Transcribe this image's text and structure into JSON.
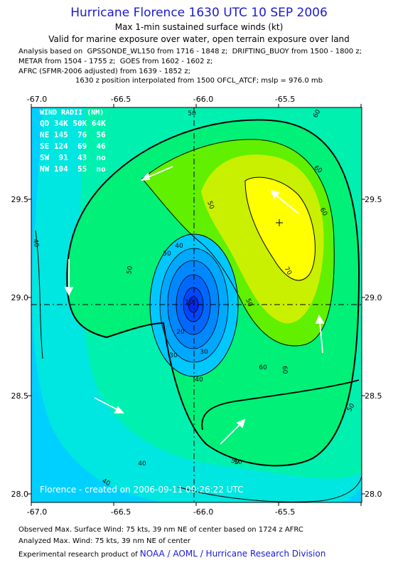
{
  "header": {
    "title": "Hurricane Florence 1630 UTC 10 SEP 2006",
    "subtitle": "Max 1-min sustained surface winds (kt)",
    "validity": "Valid for marine exposure over water, open terrain exposure over land",
    "analysis_lines": [
      "Analysis based on  GPSSONDE_WL150 from 1716 - 1848 z;  DRIFTING_BUOY from 1500 - 1800 z;",
      "METAR from 1504 - 1755 z;  GOES from 1602 - 1602 z;",
      "AFRC (SFMR-2006 adjusted) from 1639 - 1852 z;"
    ],
    "position_note": "1630 z position interpolated from 1500 OFCL_ATCF; mslp = 976.0 mb"
  },
  "map": {
    "lon_ticks": [
      "-67.0",
      "-66.5",
      "-66.0",
      "-65.5"
    ],
    "lat_ticks": [
      "29.5",
      "29.0",
      "28.5",
      "28.0"
    ],
    "wind_radii": {
      "title": "WIND RADII (NM)",
      "header": "QD 34K 50K 64K",
      "rows": [
        "NE 145  76  56",
        "SE 124  69  46",
        "SW  91  43  no",
        "NW 104  55  no"
      ]
    },
    "contour_labels": [
      "50",
      "60",
      "60",
      "50",
      "40",
      "60",
      "70",
      "50",
      "50",
      "50",
      "40",
      "30",
      "20",
      "10",
      "30",
      "40",
      "60",
      "60",
      "50",
      "50",
      "40",
      "50",
      "40"
    ],
    "credit": "Florence - created on 2006-09-11 00:26:22 UTC",
    "colors": {
      "outer": "#00d0ff",
      "cyan2": "#00e6e0",
      "teal": "#00f0b0",
      "green": "#00f078",
      "lime": "#60f000",
      "yellowgreen": "#c8f000",
      "yellow": "#ffff00",
      "core1": "#00a8ff",
      "core2": "#0080ff",
      "core3": "#0058ff",
      "core4": "#0030ff"
    }
  },
  "footer": {
    "observed": "Observed Max. Surface Wind: 75 kts, 39 nm NE of center based on 1724 z AFRC",
    "analyzed": "Analyzed Max. Wind: 75 kts, 39 nm NE of center",
    "product_prefix": "Experimental research product of ",
    "product_org": "NOAA / AOML / Hurricane Research Division"
  }
}
